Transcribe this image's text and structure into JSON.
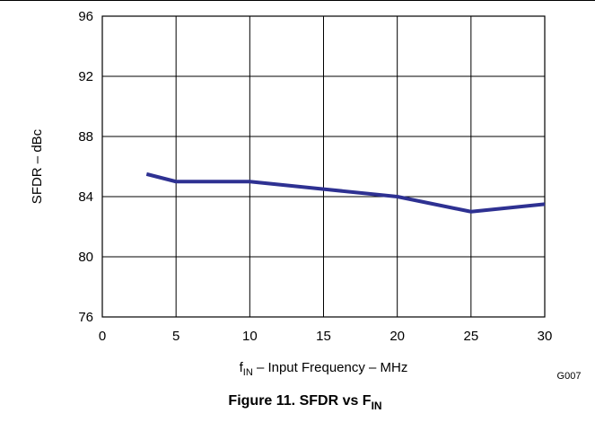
{
  "chart_data": {
    "type": "line",
    "xlabel": {
      "prefix": "f",
      "sub": "IN",
      "rest": " – Input Frequency – MHz"
    },
    "ylabel": "SFDR – dBc",
    "xlim": [
      0,
      30
    ],
    "ylim": [
      76,
      96
    ],
    "x_ticks": [
      0,
      5,
      10,
      15,
      20,
      25,
      30
    ],
    "y_ticks": [
      76,
      80,
      84,
      88,
      92,
      96
    ],
    "grid": true,
    "series": [
      {
        "color": "#2e3192",
        "x": [
          3,
          5,
          10,
          15,
          20,
          25,
          30
        ],
        "y": [
          85.5,
          85.0,
          85.0,
          84.5,
          84.0,
          83.0,
          83.5
        ]
      }
    ],
    "code_label": "G007",
    "caption": {
      "main": "Figure 11. SFDR vs F",
      "sub": "IN"
    }
  }
}
